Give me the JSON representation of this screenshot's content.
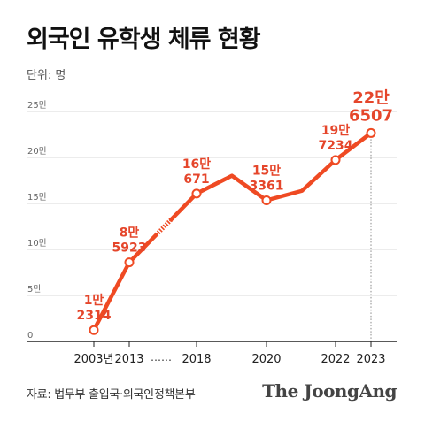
{
  "title": "외국인 유학생 체류 현황",
  "unit_label": "단위: 명",
  "source": "자료: 법무부 출입국·외국인정책본부",
  "brand": "The JoongAng",
  "colors": {
    "line": "#ef4a23",
    "label": "#e5462b",
    "grid": "#d9d9d9",
    "axis": "#222222",
    "tick_text": "#666666"
  },
  "chart_data": {
    "type": "line",
    "title": "외국인 유학생 체류 현황",
    "ylabel": "단위: 명",
    "ylim": [
      0,
      250000
    ],
    "y_ticks": [
      {
        "value": 0,
        "label": "0"
      },
      {
        "value": 50000,
        "label": "5만"
      },
      {
        "value": 100000,
        "label": "10만"
      },
      {
        "value": 150000,
        "label": "15만"
      },
      {
        "value": 200000,
        "label": "20만"
      },
      {
        "value": 250000,
        "label": "25만"
      }
    ],
    "x_ticks": [
      "2003년",
      "2013",
      "2018",
      "2020",
      "2022",
      "2023"
    ],
    "axis_break_marker": "……",
    "grid": true,
    "points": [
      {
        "x": "2003",
        "y": 12314,
        "label": [
          "1만",
          "2314"
        ]
      },
      {
        "x": "2013",
        "y": 85923,
        "label": [
          "8만",
          "5923"
        ]
      },
      {
        "x": "2018",
        "y": 160671,
        "label": [
          "16만",
          "671"
        ]
      },
      {
        "x": "2019",
        "y": 180131
      },
      {
        "x": "2020",
        "y": 153361,
        "label": [
          "15만",
          "3361"
        ]
      },
      {
        "x": "2021",
        "y": 163697
      },
      {
        "x": "2022",
        "y": 197234,
        "label": [
          "19만",
          "7234"
        ]
      },
      {
        "x": "2023",
        "y": 226507,
        "label": [
          "22만",
          "6507"
        ]
      }
    ],
    "segments": [
      {
        "from": 0,
        "to": 1,
        "style": "solid"
      },
      {
        "from": 1,
        "to": 2,
        "style": "break"
      },
      {
        "from": 2,
        "to": 7,
        "style": "solid"
      }
    ]
  }
}
